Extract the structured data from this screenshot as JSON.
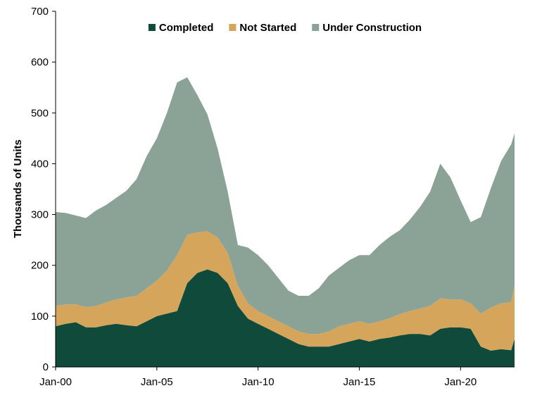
{
  "chart_data": {
    "type": "area",
    "stacked": true,
    "title": "",
    "xlabel": "",
    "ylabel": "Thousands of Units",
    "ylim": [
      0,
      700
    ],
    "yticks": [
      0,
      100,
      200,
      300,
      400,
      500,
      600,
      700
    ],
    "xlim": [
      "2000-01",
      "2022-09"
    ],
    "xticks": [
      {
        "date": "2000-01",
        "label": "Jan-00"
      },
      {
        "date": "2005-01",
        "label": "Jan-05"
      },
      {
        "date": "2010-01",
        "label": "Jan-10"
      },
      {
        "date": "2015-01",
        "label": "Jan-15"
      },
      {
        "date": "2020-01",
        "label": "Jan-20"
      }
    ],
    "grid": false,
    "legend_position": "top-center",
    "x": [
      "2000-01",
      "2000-07",
      "2001-01",
      "2001-07",
      "2002-01",
      "2002-07",
      "2003-01",
      "2003-07",
      "2004-01",
      "2004-07",
      "2005-01",
      "2005-07",
      "2006-01",
      "2006-07",
      "2007-01",
      "2007-07",
      "2008-01",
      "2008-07",
      "2009-01",
      "2009-07",
      "2010-01",
      "2010-07",
      "2011-01",
      "2011-07",
      "2012-01",
      "2012-07",
      "2013-01",
      "2013-07",
      "2014-01",
      "2014-07",
      "2015-01",
      "2015-07",
      "2016-01",
      "2016-07",
      "2017-01",
      "2017-07",
      "2018-01",
      "2018-07",
      "2019-01",
      "2019-07",
      "2020-01",
      "2020-07",
      "2021-01",
      "2021-07",
      "2022-01",
      "2022-07",
      "2022-09"
    ],
    "series": [
      {
        "name": "Completed",
        "color": "#0f4a3a",
        "values": [
          80,
          85,
          88,
          78,
          78,
          82,
          85,
          82,
          80,
          90,
          100,
          105,
          110,
          165,
          185,
          192,
          185,
          165,
          120,
          95,
          85,
          75,
          65,
          55,
          45,
          40,
          40,
          40,
          45,
          50,
          55,
          50,
          55,
          58,
          62,
          65,
          65,
          62,
          75,
          78,
          78,
          75,
          40,
          32,
          35,
          33,
          55
        ]
      },
      {
        "name": "Not Started",
        "color": "#d4a55a",
        "values": [
          40,
          38,
          35,
          40,
          42,
          45,
          48,
          55,
          60,
          65,
          70,
          85,
          110,
          95,
          80,
          75,
          70,
          60,
          40,
          30,
          25,
          25,
          25,
          25,
          25,
          25,
          25,
          30,
          35,
          35,
          35,
          35,
          35,
          38,
          42,
          45,
          50,
          58,
          60,
          55,
          55,
          50,
          65,
          85,
          90,
          95,
          105
        ]
      },
      {
        "name": "Under Construction",
        "color": "#8ba396",
        "values": [
          185,
          180,
          175,
          175,
          188,
          192,
          200,
          210,
          230,
          260,
          280,
          310,
          340,
          310,
          270,
          230,
          175,
          120,
          80,
          110,
          110,
          100,
          85,
          70,
          70,
          75,
          90,
          110,
          115,
          125,
          130,
          135,
          150,
          160,
          165,
          180,
          200,
          225,
          265,
          240,
          195,
          160,
          190,
          235,
          280,
          310,
          300
        ]
      }
    ]
  }
}
